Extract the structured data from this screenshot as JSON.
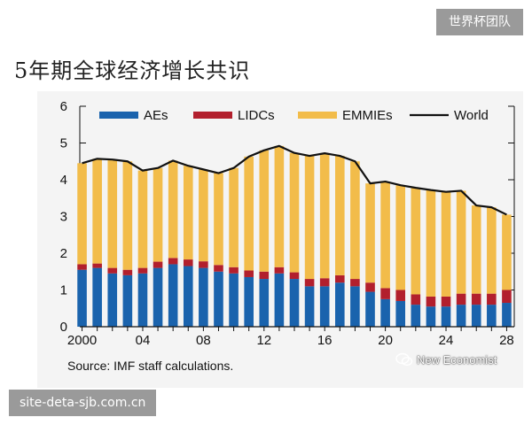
{
  "watermark": {
    "top_right": "世界杯团队",
    "bottom_left": "site-deta-sjb.com.cn"
  },
  "page_title": "5年期全球经济增长共识",
  "source_note": "Source: IMF staff calculations.",
  "wechat_account": "New Economist",
  "colors": {
    "AEs": "#1a63ad",
    "LIDCs": "#b21f2d",
    "EMMIEs": "#f2bc4a",
    "World": "#111111",
    "panel": "#f4f4f4"
  },
  "chart_data": {
    "type": "bar",
    "stacked": true,
    "x": [
      2000,
      2001,
      2002,
      2003,
      2004,
      2005,
      2006,
      2007,
      2008,
      2009,
      2010,
      2011,
      2012,
      2013,
      2014,
      2015,
      2016,
      2017,
      2018,
      2019,
      2020,
      2021,
      2022,
      2023,
      2024,
      2025,
      2026,
      2027,
      2028
    ],
    "x_tick_labels": [
      {
        "x": 2000,
        "label": "2000"
      },
      {
        "x": 2004,
        "label": "04"
      },
      {
        "x": 2008,
        "label": "08"
      },
      {
        "x": 2012,
        "label": "12"
      },
      {
        "x": 2016,
        "label": "16"
      },
      {
        "x": 2020,
        "label": "20"
      },
      {
        "x": 2024,
        "label": "24"
      },
      {
        "x": 2028,
        "label": "28"
      }
    ],
    "ylim": [
      0,
      6
    ],
    "y_ticks": [
      0,
      1,
      2,
      3,
      4,
      5,
      6
    ],
    "legend_position": "top",
    "series": [
      {
        "name": "AEs",
        "values": [
          1.55,
          1.6,
          1.45,
          1.4,
          1.45,
          1.6,
          1.7,
          1.65,
          1.6,
          1.5,
          1.45,
          1.35,
          1.3,
          1.45,
          1.3,
          1.1,
          1.1,
          1.2,
          1.1,
          0.95,
          0.75,
          0.7,
          0.6,
          0.55,
          0.55,
          0.6,
          0.6,
          0.6,
          0.65
        ]
      },
      {
        "name": "LIDCs",
        "values": [
          0.15,
          0.12,
          0.15,
          0.15,
          0.15,
          0.17,
          0.17,
          0.18,
          0.18,
          0.18,
          0.17,
          0.18,
          0.2,
          0.17,
          0.18,
          0.2,
          0.22,
          0.2,
          0.2,
          0.25,
          0.3,
          0.3,
          0.28,
          0.27,
          0.27,
          0.3,
          0.3,
          0.3,
          0.35
        ]
      },
      {
        "name": "EMMIEs",
        "values": [
          2.75,
          2.85,
          2.95,
          2.95,
          2.65,
          2.55,
          2.65,
          2.55,
          2.5,
          2.5,
          2.7,
          3.1,
          3.3,
          3.3,
          3.25,
          3.35,
          3.4,
          3.25,
          3.2,
          2.7,
          2.9,
          2.85,
          2.9,
          2.9,
          2.85,
          2.8,
          2.4,
          2.35,
          2.05
        ]
      }
    ],
    "line": {
      "name": "World",
      "values": [
        4.45,
        4.57,
        4.55,
        4.5,
        4.25,
        4.32,
        4.52,
        4.38,
        4.28,
        4.18,
        4.32,
        4.63,
        4.8,
        4.92,
        4.73,
        4.65,
        4.72,
        4.65,
        4.5,
        3.9,
        3.95,
        3.85,
        3.78,
        3.72,
        3.67,
        3.7,
        3.3,
        3.25,
        3.05
      ]
    }
  }
}
